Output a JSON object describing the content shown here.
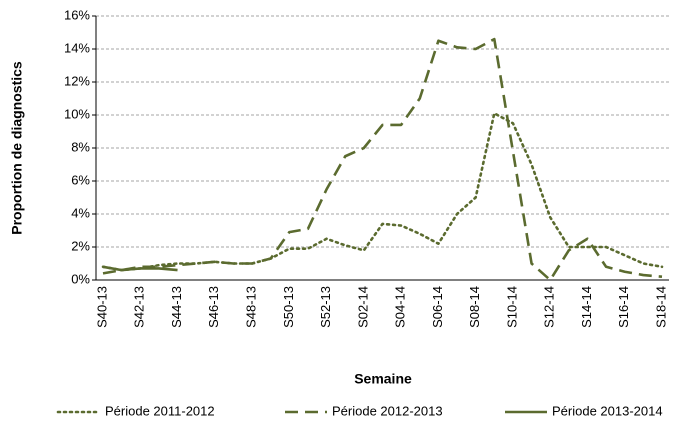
{
  "chart_data": {
    "type": "line",
    "y_label": "Proportion de diagnostics",
    "x_label": "Semaine",
    "categories": [
      "S40-13",
      null,
      "S42-13",
      null,
      "S44-13",
      null,
      "S46-13",
      null,
      "S48-13",
      null,
      "S50-13",
      null,
      "S52-13",
      null,
      "S02-14",
      null,
      "S04-14",
      null,
      "S06-14",
      null,
      "S08-14",
      null,
      "S10-14",
      null,
      "S12-14",
      null,
      "S14-14",
      null,
      "S16-14",
      null,
      "S18-14"
    ],
    "series": [
      {
        "name": "Période 2011-2012",
        "color": "#5b6b2f",
        "style": "dotted",
        "values": [
          0.8,
          0.6,
          0.7,
          0.9,
          1.0,
          1.0,
          1.1,
          1.0,
          1.0,
          1.3,
          1.9,
          1.9,
          2.5,
          2.1,
          1.8,
          3.4,
          3.3,
          2.8,
          2.2,
          4.0,
          5.0,
          10.1,
          9.5,
          7.0,
          3.8,
          2.0,
          2.0,
          2.0,
          1.5,
          1.0,
          0.8
        ]
      },
      {
        "name": "Période 2012-2013",
        "color": "#5b6b2f",
        "style": "dashed",
        "values": [
          0.4,
          0.6,
          0.8,
          0.8,
          0.9,
          1.0,
          1.1,
          1.0,
          1.0,
          1.3,
          2.9,
          3.1,
          5.5,
          7.5,
          8.0,
          9.4,
          9.4,
          11.0,
          14.5,
          14.1,
          14.0,
          14.6,
          7.8,
          1.0,
          0.0,
          1.8,
          2.5,
          0.8,
          0.5,
          0.3,
          0.2
        ]
      },
      {
        "name": "Période 2013-2014",
        "color": "#5b6b2f",
        "style": "solid",
        "values": [
          0.8,
          0.6,
          0.7,
          0.7,
          0.6,
          null,
          null,
          null,
          null,
          null,
          null,
          null,
          null,
          null,
          null,
          null,
          null,
          null,
          null,
          null,
          null,
          null,
          null,
          null,
          null,
          null,
          null,
          null,
          null,
          null,
          null
        ]
      }
    ],
    "ylim": [
      0,
      16
    ],
    "yticks": [
      {
        "value": 0,
        "label": "0%"
      },
      {
        "value": 2,
        "label": "2%"
      },
      {
        "value": 4,
        "label": "4%"
      },
      {
        "value": 6,
        "label": "6%"
      },
      {
        "value": 8,
        "label": "8%"
      },
      {
        "value": 10,
        "label": "10%"
      },
      {
        "value": 12,
        "label": "12%"
      },
      {
        "value": 14,
        "label": "14%"
      },
      {
        "value": 16,
        "label": "16%"
      }
    ],
    "grid": true,
    "legend": "bottom"
  }
}
